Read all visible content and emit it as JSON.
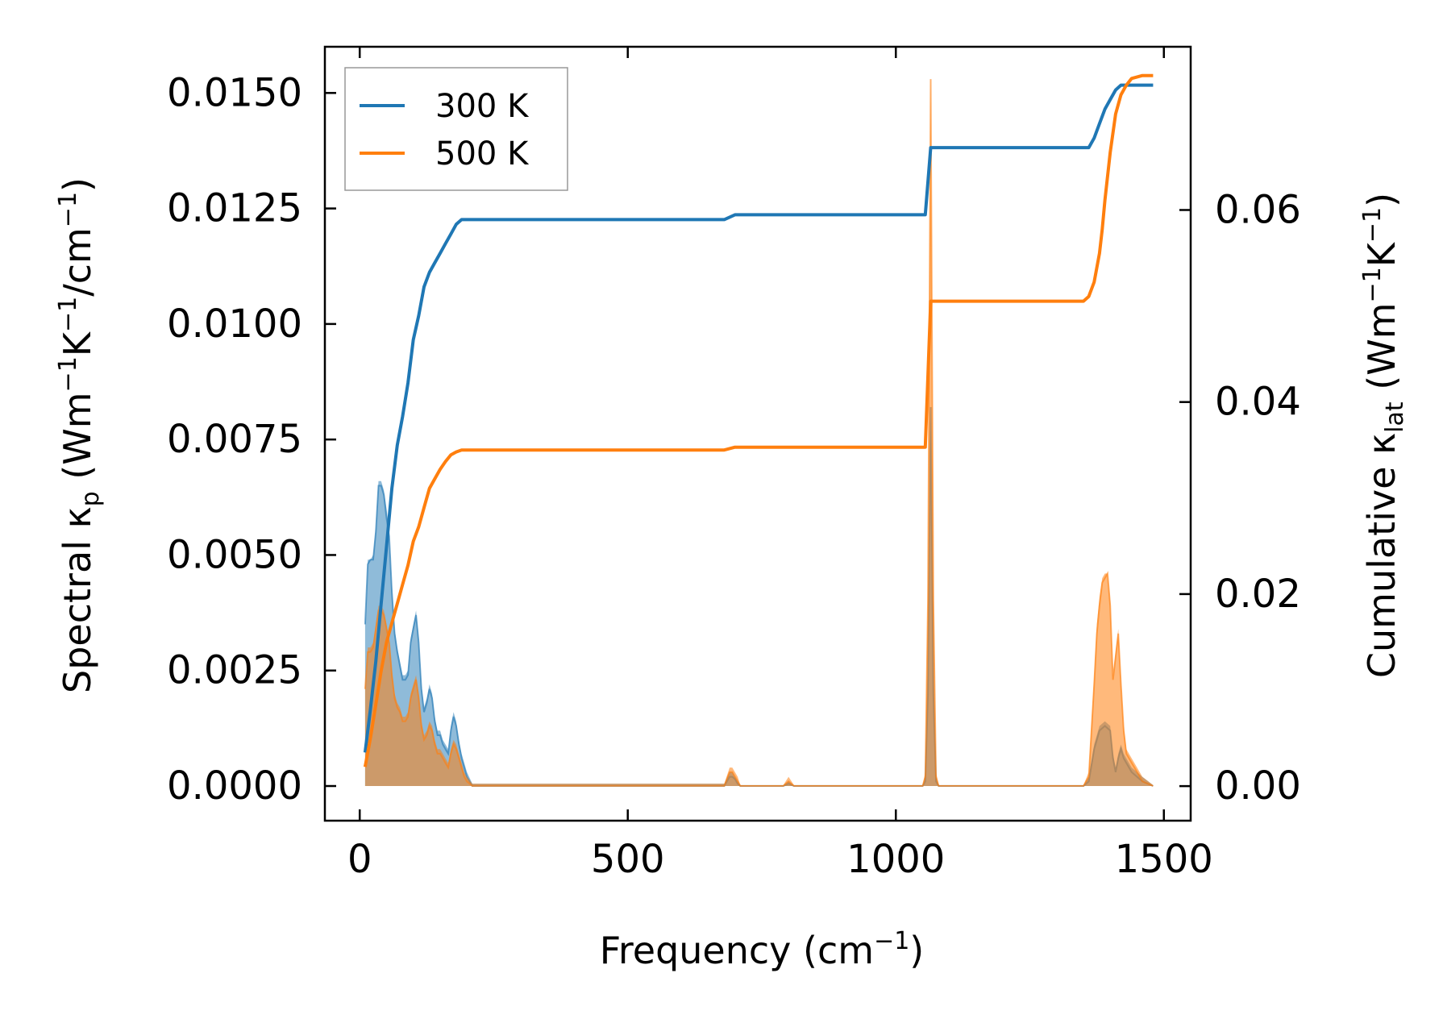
{
  "chart_data": {
    "type": "line",
    "xlabel": {
      "prefix": "Frequency (cm",
      "sup": "−1",
      "suffix": ")"
    },
    "ylabel_left": {
      "p1": "Spectral κ",
      "sub": "p",
      "p2": " (Wm",
      "s1": "−1",
      "p3": "K",
      "s2": "−1",
      "p4": "/cm",
      "s3": "−1",
      "p5": ")"
    },
    "ylabel_right": {
      "p1": "Cumulative κ",
      "sub": "lat",
      "p2": " (Wm",
      "s1": "−1",
      "p3": "K",
      "s2": "−1",
      "p4": ")"
    },
    "xlim": [
      -65,
      1550
    ],
    "ylim_left": [
      -0.00075,
      0.016
    ],
    "ylim_right": [
      -0.0036,
      0.077
    ],
    "x_ticks": [
      0,
      500,
      1000,
      1500
    ],
    "x_tick_labels": [
      "0",
      "500",
      "1000",
      "1500"
    ],
    "y_left_ticks": [
      0,
      0.0025,
      0.005,
      0.0075,
      0.01,
      0.0125,
      0.015
    ],
    "y_left_tick_labels": [
      "0.0000",
      "0.0025",
      "0.0050",
      "0.0075",
      "0.0100",
      "0.0125",
      "0.0150"
    ],
    "y_right_ticks": [
      0,
      0.02,
      0.04,
      0.06
    ],
    "y_right_tick_labels": [
      "0.00",
      "0.02",
      "0.04",
      "0.06"
    ],
    "legend": {
      "position": "upper-left",
      "entries": [
        "300 K",
        "500 K"
      ]
    },
    "colors": {
      "300K": "#1f77b4",
      "500K": "#ff7f0e",
      "fill300": "#1f77b4",
      "fill500": "#ff7f0e"
    },
    "series_spectral": [
      {
        "name": "300 K",
        "x": [
          10,
          15,
          20,
          25,
          30,
          35,
          40,
          45,
          50,
          55,
          60,
          65,
          70,
          75,
          80,
          85,
          90,
          95,
          100,
          105,
          110,
          115,
          120,
          125,
          130,
          135,
          140,
          145,
          150,
          155,
          160,
          165,
          170,
          175,
          180,
          185,
          190,
          195,
          200,
          210,
          680,
          690,
          695,
          700,
          705,
          710,
          790,
          800,
          810,
          1050,
          1055,
          1060,
          1065,
          1070,
          1075,
          1080,
          1350,
          1360,
          1370,
          1380,
          1390,
          1400,
          1405,
          1410,
          1415,
          1420,
          1425,
          1430,
          1440,
          1450,
          1460,
          1480
        ],
        "y": [
          0.0035,
          0.0048,
          0.0049,
          0.0049,
          0.0055,
          0.0065,
          0.0065,
          0.0063,
          0.0058,
          0.0054,
          0.0042,
          0.0033,
          0.0029,
          0.0026,
          0.0023,
          0.0023,
          0.0024,
          0.0031,
          0.0034,
          0.0037,
          0.0031,
          0.0021,
          0.0016,
          0.0018,
          0.0021,
          0.0019,
          0.0014,
          0.0011,
          0.0011,
          0.0009,
          0.0008,
          0.0007,
          0.0012,
          0.0015,
          0.0013,
          0.0009,
          0.0006,
          0.0004,
          0.0002,
          0,
          0,
          0.0002,
          0.0002,
          0.00015,
          5e-05,
          0,
          0,
          5e-05,
          0,
          0,
          0.0001,
          0.002,
          0.0082,
          0.002,
          0.0001,
          0,
          0,
          0.0001,
          0.0008,
          0.0012,
          0.0013,
          0.0012,
          0.0006,
          0.0003,
          0.0006,
          0.0008,
          0.0006,
          0.0005,
          0.0003,
          0.0002,
          0.0001,
          0
        ],
        "upper": [
          0.0035,
          0.0049,
          0.0049,
          0.005,
          0.0056,
          0.0066,
          0.0066,
          0.0064,
          0.006,
          0.0055,
          0.0043,
          0.0034,
          0.003,
          0.0027,
          0.0024,
          0.0024,
          0.0025,
          0.0032,
          0.0035,
          0.0038,
          0.0032,
          0.0022,
          0.0017,
          0.0019,
          0.0022,
          0.002,
          0.0015,
          0.0012,
          0.0012,
          0.001,
          0.0009,
          0.0008,
          0.0013,
          0.0016,
          0.0014,
          0.001,
          0.0007,
          0.0005,
          0.0003,
          5e-05,
          5e-05,
          0.0003,
          0.0003,
          0.0002,
          0.0001,
          2e-05,
          2e-05,
          0.0001,
          2e-05,
          2e-05,
          0.0002,
          0.0025,
          0.0082,
          0.0025,
          0.0002,
          2e-05,
          2e-05,
          0.0002,
          0.0009,
          0.0013,
          0.0014,
          0.0013,
          0.0007,
          0.0004,
          0.0007,
          0.0009,
          0.0007,
          0.0006,
          0.0004,
          0.0003,
          0.0002,
          2e-05
        ]
      },
      {
        "name": "500 K",
        "x": [
          10,
          15,
          20,
          25,
          30,
          35,
          40,
          45,
          50,
          55,
          60,
          65,
          70,
          75,
          80,
          85,
          90,
          95,
          100,
          105,
          110,
          115,
          120,
          125,
          130,
          135,
          140,
          145,
          150,
          155,
          160,
          165,
          170,
          175,
          180,
          185,
          190,
          195,
          200,
          210,
          680,
          690,
          695,
          700,
          705,
          710,
          790,
          800,
          810,
          1050,
          1055,
          1060,
          1065,
          1070,
          1075,
          1080,
          1350,
          1360,
          1370,
          1375,
          1380,
          1385,
          1390,
          1395,
          1400,
          1405,
          1410,
          1415,
          1420,
          1425,
          1430,
          1440,
          1450,
          1460,
          1480
        ],
        "y": [
          0.0021,
          0.0029,
          0.0029,
          0.003,
          0.0034,
          0.0038,
          0.0038,
          0.0037,
          0.0034,
          0.0031,
          0.0024,
          0.0019,
          0.0017,
          0.0016,
          0.0014,
          0.0014,
          0.0015,
          0.0019,
          0.0021,
          0.0023,
          0.0019,
          0.0013,
          0.001,
          0.0011,
          0.0013,
          0.0012,
          0.0009,
          0.0007,
          0.0007,
          0.0006,
          0.0005,
          0.0004,
          0.0007,
          0.0009,
          0.0008,
          0.0006,
          0.0004,
          0.0002,
          0.0001,
          0,
          0,
          0.0003,
          0.0003,
          0.0002,
          0.0001,
          0,
          0,
          0.0001,
          0,
          0,
          0.0002,
          0.004,
          0.0153,
          0.004,
          0.0002,
          0,
          0,
          0.0002,
          0.0022,
          0.0033,
          0.0039,
          0.0044,
          0.0045,
          0.0046,
          0.0039,
          0.0023,
          0.0028,
          0.0033,
          0.0022,
          0.0012,
          0.0007,
          0.0005,
          0.0003,
          0.0001,
          0
        ],
        "upper": [
          0.0021,
          0.003,
          0.003,
          0.0031,
          0.0035,
          0.0039,
          0.0039,
          0.0038,
          0.0035,
          0.0032,
          0.0025,
          0.002,
          0.0018,
          0.0017,
          0.0015,
          0.0015,
          0.0016,
          0.002,
          0.0022,
          0.0024,
          0.002,
          0.0014,
          0.0011,
          0.0012,
          0.0014,
          0.0013,
          0.001,
          0.0008,
          0.0008,
          0.0007,
          0.0006,
          0.0005,
          0.0008,
          0.001,
          0.0009,
          0.0007,
          0.0005,
          0.0003,
          0.0002,
          5e-05,
          5e-05,
          0.0004,
          0.0004,
          0.0003,
          0.0002,
          2e-05,
          2e-05,
          0.0002,
          2e-05,
          2e-05,
          0.0003,
          0.0045,
          0.0153,
          0.0045,
          0.0003,
          2e-05,
          2e-05,
          0.0003,
          0.0024,
          0.0035,
          0.0041,
          0.0045,
          0.0046,
          0.0046,
          0.004,
          0.0024,
          0.0029,
          0.0034,
          0.0023,
          0.0013,
          0.0008,
          0.0006,
          0.0004,
          0.0002,
          2e-05
        ]
      }
    ],
    "series_cumulative": [
      {
        "name": "300 K",
        "x": [
          10,
          20,
          30,
          40,
          50,
          60,
          70,
          80,
          90,
          100,
          110,
          120,
          130,
          140,
          150,
          160,
          170,
          180,
          190,
          200,
          680,
          700,
          790,
          800,
          1055,
          1065,
          1070,
          1350,
          1360,
          1370,
          1380,
          1390,
          1400,
          1410,
          1420,
          1440,
          1480
        ],
        "y": [
          0.0035,
          0.008,
          0.013,
          0.019,
          0.025,
          0.031,
          0.0355,
          0.0385,
          0.042,
          0.0465,
          0.049,
          0.052,
          0.0535,
          0.0545,
          0.0555,
          0.0565,
          0.0575,
          0.0585,
          0.059,
          0.059,
          0.059,
          0.0595,
          0.0595,
          0.0595,
          0.0595,
          0.0665,
          0.0665,
          0.0665,
          0.0665,
          0.0675,
          0.069,
          0.0705,
          0.0715,
          0.0725,
          0.073,
          0.073,
          0.073
        ]
      },
      {
        "name": "500 K",
        "x": [
          10,
          20,
          30,
          40,
          50,
          60,
          70,
          80,
          90,
          100,
          110,
          120,
          130,
          140,
          150,
          160,
          170,
          180,
          190,
          200,
          680,
          700,
          790,
          800,
          1055,
          1065,
          1070,
          1350,
          1360,
          1370,
          1375,
          1380,
          1385,
          1390,
          1400,
          1410,
          1420,
          1430,
          1440,
          1460,
          1480
        ],
        "y": [
          0.002,
          0.005,
          0.0085,
          0.012,
          0.015,
          0.017,
          0.019,
          0.021,
          0.023,
          0.0255,
          0.027,
          0.029,
          0.031,
          0.032,
          0.033,
          0.0338,
          0.0345,
          0.0348,
          0.035,
          0.035,
          0.035,
          0.0353,
          0.0353,
          0.0353,
          0.0353,
          0.0505,
          0.0505,
          0.0505,
          0.051,
          0.0525,
          0.054,
          0.0555,
          0.058,
          0.061,
          0.066,
          0.07,
          0.072,
          0.073,
          0.0737,
          0.074,
          0.074
        ]
      }
    ]
  }
}
